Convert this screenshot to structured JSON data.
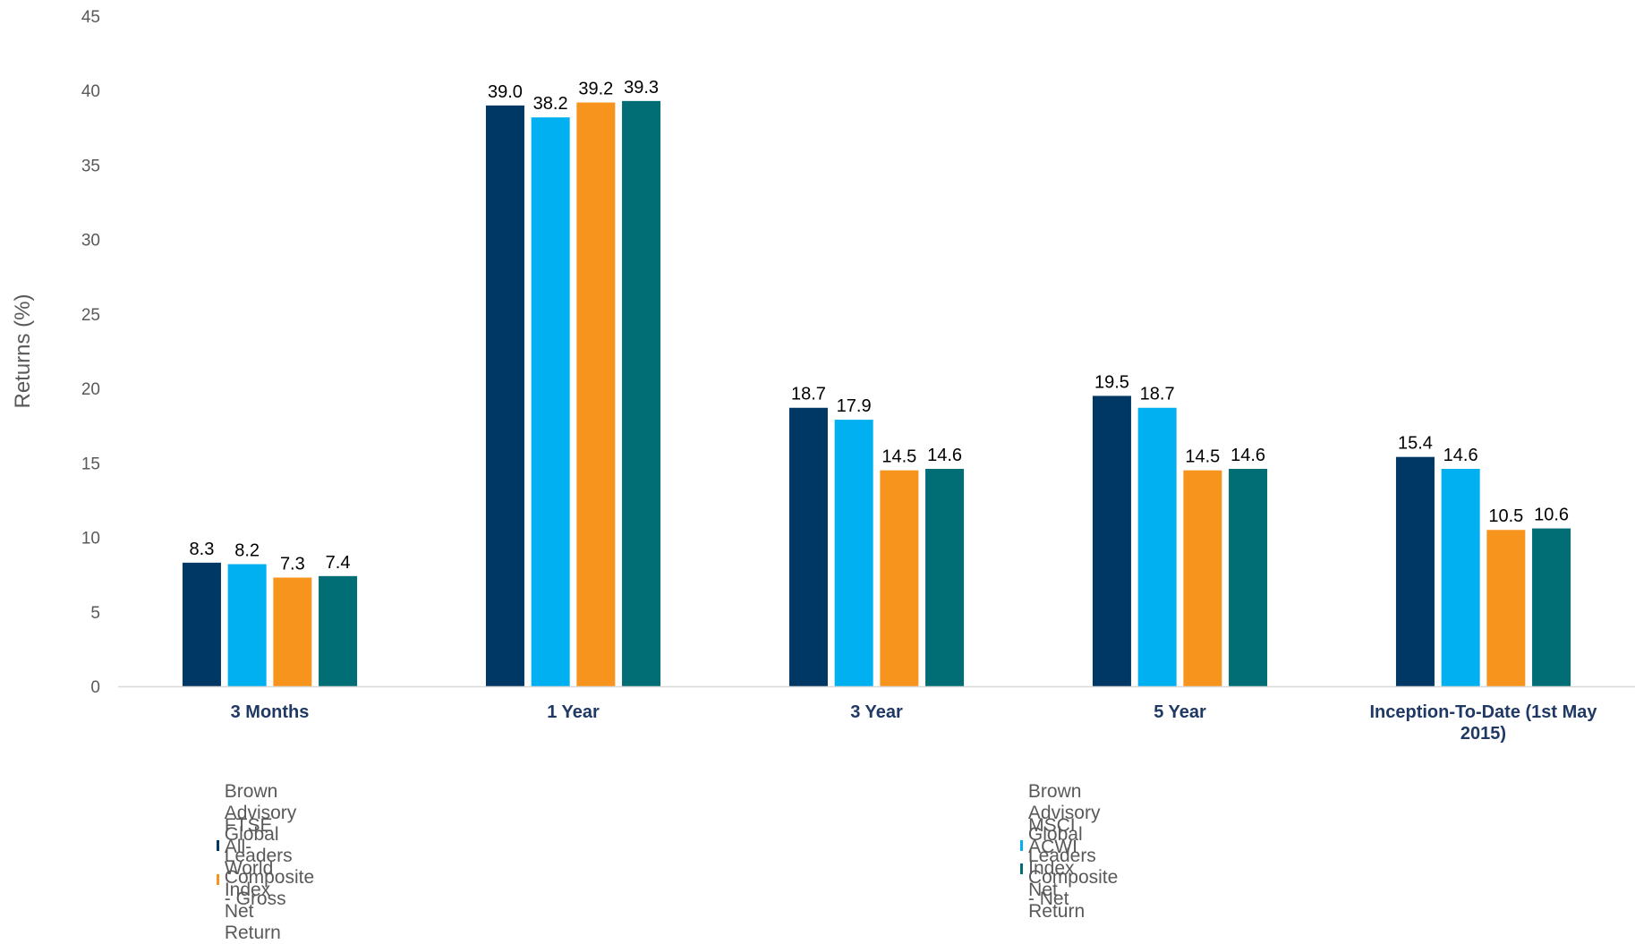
{
  "chart_data": {
    "type": "bar",
    "title": "",
    "xlabel": "",
    "ylabel": "Returns (%)",
    "ylim": [
      0,
      45
    ],
    "yticks": [
      0,
      5,
      10,
      15,
      20,
      25,
      30,
      35,
      40,
      45
    ],
    "grid": false,
    "legend_position": "bottom",
    "categories": [
      [
        "3 Months"
      ],
      [
        "1 Year"
      ],
      [
        "3 Year"
      ],
      [
        "5 Year"
      ],
      [
        "Inception-To-Date (1st May",
        "2015)"
      ]
    ],
    "series": [
      {
        "name": "Brown Advisory Global Leaders Composite - Gross",
        "color": "#003865",
        "values": [
          8.3,
          39.0,
          18.7,
          19.5,
          15.4
        ],
        "labels": [
          "8.3",
          "39.0",
          "18.7",
          "19.5",
          "15.4"
        ]
      },
      {
        "name": "Brown Advisory Global Leaders Composite - Net",
        "color": "#00b0f0",
        "values": [
          8.2,
          38.2,
          17.9,
          18.7,
          14.6
        ],
        "labels": [
          "8.2",
          "38.2",
          "17.9",
          "18.7",
          "14.6"
        ]
      },
      {
        "name": "FTSE All-World Index Net Return",
        "color": "#f7941d",
        "values": [
          7.3,
          39.2,
          14.5,
          14.5,
          10.5
        ],
        "labels": [
          "7.3",
          "39.2",
          "14.5",
          "14.5",
          "10.5"
        ]
      },
      {
        "name": "MSCI ACWI Index Net Return",
        "color": "#006e74",
        "values": [
          7.4,
          39.3,
          14.6,
          14.6,
          10.6
        ],
        "labels": [
          "7.4",
          "39.3",
          "14.6",
          "14.6",
          "10.6"
        ]
      }
    ]
  }
}
